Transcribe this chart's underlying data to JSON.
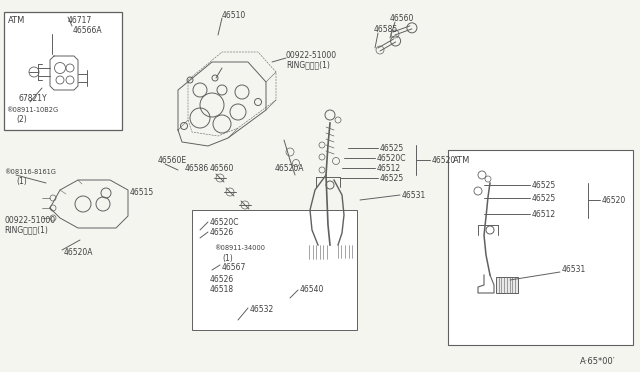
{
  "bg_color": "#f5f5f0",
  "line_color": "#606060",
  "text_color": "#404040",
  "fs": 5.5,
  "fs_small": 4.8,
  "diagram_code": "A·65*00′",
  "lw_main": 0.7,
  "lw_thin": 0.5,
  "parts": {
    "ATM": "ATM",
    "46717": "46717",
    "46566A": "46566A",
    "67821Y": "67821Y",
    "N08911_10B2G": "®08911-10B2G",
    "qty_2": "(2)",
    "46510": "46510",
    "00922_51000": "00922-51000",
    "RING": "RINGリング(1)",
    "46560_top": "46560",
    "46585": "46585",
    "46525_a": "46525",
    "46520C_a": "46520C",
    "46520": "46520",
    "46512_a": "46512",
    "46525_b": "46525",
    "46560E": "46560E",
    "46586": "46586",
    "46560_mid": "46560",
    "46520A_a": "46520A",
    "46531": "46531",
    "46515": "46515",
    "B08116": "®08116-8161G",
    "qty_1a": "(1)",
    "00922_51000b": "00922-51000",
    "RINGb": "RINGリング(1)",
    "46520C_b": "46520C",
    "46526_a": "46526",
    "N08911_34000": "®08911-34000",
    "qty_1b": "(1)",
    "46567": "46567",
    "46526_b": "46526",
    "46518": "46518",
    "46540": "46540",
    "46532": "46532",
    "46520A_b": "46520A",
    "ATM2": "ATM",
    "46525_c": "46525",
    "46525_d": "46525",
    "46512_b": "46512",
    "46520_b": "46520",
    "46531_b": "46531"
  }
}
